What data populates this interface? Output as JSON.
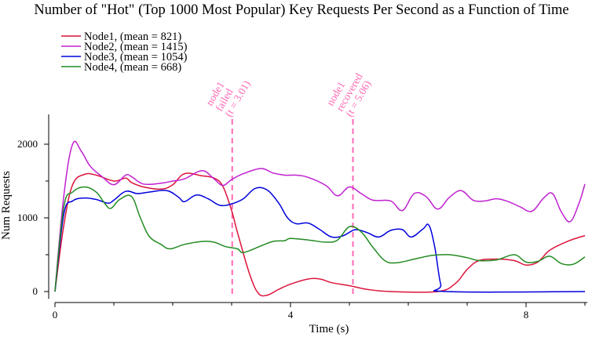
{
  "chart_data": {
    "type": "line",
    "title": "Number of \"Hot\" (Top 1000 Most Popular) Key Requests Per Second as a Function of Time",
    "xlabel": "Time (s)",
    "ylabel": "Num Requests",
    "xlim": [
      0,
      9.0
    ],
    "ylim": [
      -100,
      2400
    ],
    "x_ticks": [
      0,
      4,
      8
    ],
    "y_ticks": [
      0,
      1000,
      2000
    ],
    "x_minor_ticks": [
      0,
      1,
      2,
      3,
      4,
      5,
      6,
      7,
      8,
      9
    ],
    "y_minor_ticks": [
      0,
      500,
      1000,
      1500,
      2000
    ],
    "grid": false,
    "legend_position": "top-left",
    "series": [
      {
        "name": "Node1, (mean = 821)",
        "color": "#dc143c",
        "points": [
          [
            0,
            0
          ],
          [
            0.15,
            900
          ],
          [
            0.3,
            1450
          ],
          [
            0.5,
            1590
          ],
          [
            0.7,
            1580
          ],
          [
            1.0,
            1500
          ],
          [
            1.2,
            1540
          ],
          [
            1.3,
            1480
          ],
          [
            1.5,
            1420
          ],
          [
            1.8,
            1390
          ],
          [
            2.0,
            1450
          ],
          [
            2.2,
            1600
          ],
          [
            2.5,
            1570
          ],
          [
            2.7,
            1540
          ],
          [
            2.85,
            1430
          ],
          [
            3.0,
            1100
          ],
          [
            3.1,
            800
          ],
          [
            3.3,
            250
          ],
          [
            3.45,
            -20
          ],
          [
            3.6,
            -50
          ],
          [
            3.8,
            30
          ],
          [
            4.0,
            100
          ],
          [
            4.3,
            170
          ],
          [
            4.5,
            170
          ],
          [
            4.7,
            120
          ],
          [
            5.0,
            80
          ],
          [
            5.3,
            30
          ],
          [
            5.7,
            0
          ],
          [
            6.5,
            0
          ],
          [
            6.8,
            110
          ],
          [
            7.0,
            300
          ],
          [
            7.2,
            420
          ],
          [
            7.5,
            440
          ],
          [
            7.8,
            420
          ],
          [
            8.0,
            360
          ],
          [
            8.2,
            400
          ],
          [
            8.4,
            560
          ],
          [
            8.7,
            680
          ],
          [
            9.0,
            760
          ]
        ]
      },
      {
        "name": "Node2, (mean = 1415)",
        "color": "#c020d0",
        "points": [
          [
            0,
            0
          ],
          [
            0.15,
            1300
          ],
          [
            0.3,
            2000
          ],
          [
            0.45,
            1900
          ],
          [
            0.6,
            1700
          ],
          [
            0.8,
            1560
          ],
          [
            1.0,
            1450
          ],
          [
            1.2,
            1580
          ],
          [
            1.3,
            1560
          ],
          [
            1.5,
            1460
          ],
          [
            1.8,
            1470
          ],
          [
            2.0,
            1500
          ],
          [
            2.2,
            1530
          ],
          [
            2.5,
            1640
          ],
          [
            2.7,
            1530
          ],
          [
            2.85,
            1440
          ],
          [
            3.0,
            1520
          ],
          [
            3.2,
            1600
          ],
          [
            3.5,
            1670
          ],
          [
            3.7,
            1610
          ],
          [
            3.9,
            1580
          ],
          [
            4.1,
            1580
          ],
          [
            4.3,
            1550
          ],
          [
            4.6,
            1440
          ],
          [
            4.8,
            1300
          ],
          [
            5.0,
            1420
          ],
          [
            5.2,
            1330
          ],
          [
            5.4,
            1240
          ],
          [
            5.7,
            1230
          ],
          [
            5.9,
            1100
          ],
          [
            6.1,
            1330
          ],
          [
            6.3,
            1290
          ],
          [
            6.5,
            1120
          ],
          [
            6.7,
            1280
          ],
          [
            6.9,
            1370
          ],
          [
            7.1,
            1240
          ],
          [
            7.3,
            1230
          ],
          [
            7.5,
            1260
          ],
          [
            7.7,
            1220
          ],
          [
            7.9,
            1150
          ],
          [
            8.1,
            1090
          ],
          [
            8.3,
            1270
          ],
          [
            8.45,
            1330
          ],
          [
            8.6,
            1080
          ],
          [
            8.75,
            950
          ],
          [
            8.9,
            1200
          ],
          [
            9.0,
            1460
          ]
        ]
      },
      {
        "name": "Node3, (mean = 1054)",
        "color": "#0000dd",
        "points": [
          [
            0,
            0
          ],
          [
            0.15,
            1050
          ],
          [
            0.3,
            1230
          ],
          [
            0.5,
            1270
          ],
          [
            0.7,
            1250
          ],
          [
            0.9,
            1200
          ],
          [
            1.0,
            1240
          ],
          [
            1.2,
            1360
          ],
          [
            1.4,
            1330
          ],
          [
            1.6,
            1350
          ],
          [
            1.9,
            1370
          ],
          [
            2.1,
            1280
          ],
          [
            2.2,
            1220
          ],
          [
            2.4,
            1310
          ],
          [
            2.6,
            1260
          ],
          [
            2.8,
            1170
          ],
          [
            3.0,
            1190
          ],
          [
            3.2,
            1260
          ],
          [
            3.4,
            1400
          ],
          [
            3.6,
            1380
          ],
          [
            3.8,
            1200
          ],
          [
            3.95,
            1000
          ],
          [
            4.1,
            920
          ],
          [
            4.3,
            930
          ],
          [
            4.5,
            840
          ],
          [
            4.7,
            740
          ],
          [
            4.9,
            760
          ],
          [
            5.1,
            840
          ],
          [
            5.3,
            800
          ],
          [
            5.5,
            740
          ],
          [
            5.7,
            830
          ],
          [
            5.9,
            840
          ],
          [
            6.05,
            740
          ],
          [
            6.25,
            850
          ],
          [
            6.35,
            900
          ],
          [
            6.45,
            600
          ],
          [
            6.55,
            100
          ],
          [
            6.65,
            0
          ],
          [
            9.0,
            0
          ]
        ]
      },
      {
        "name": "Node4, (mean = 668)",
        "color": "#228b22",
        "points": [
          [
            0,
            0
          ],
          [
            0.15,
            1150
          ],
          [
            0.3,
            1350
          ],
          [
            0.5,
            1420
          ],
          [
            0.7,
            1350
          ],
          [
            0.85,
            1190
          ],
          [
            0.95,
            1130
          ],
          [
            1.1,
            1250
          ],
          [
            1.3,
            1290
          ],
          [
            1.45,
            1000
          ],
          [
            1.6,
            750
          ],
          [
            1.8,
            640
          ],
          [
            1.95,
            580
          ],
          [
            2.2,
            640
          ],
          [
            2.5,
            680
          ],
          [
            2.7,
            670
          ],
          [
            2.9,
            610
          ],
          [
            3.1,
            580
          ],
          [
            3.2,
            530
          ],
          [
            3.5,
            620
          ],
          [
            3.7,
            680
          ],
          [
            3.9,
            690
          ],
          [
            4.0,
            720
          ],
          [
            4.3,
            700
          ],
          [
            4.6,
            670
          ],
          [
            4.8,
            700
          ],
          [
            5.0,
            880
          ],
          [
            5.2,
            810
          ],
          [
            5.4,
            600
          ],
          [
            5.6,
            420
          ],
          [
            5.8,
            390
          ],
          [
            6.1,
            440
          ],
          [
            6.4,
            490
          ],
          [
            6.7,
            500
          ],
          [
            7.0,
            460
          ],
          [
            7.2,
            420
          ],
          [
            7.5,
            430
          ],
          [
            7.8,
            500
          ],
          [
            8.0,
            400
          ],
          [
            8.2,
            410
          ],
          [
            8.4,
            480
          ],
          [
            8.6,
            380
          ],
          [
            8.8,
            370
          ],
          [
            9.0,
            470
          ]
        ]
      }
    ],
    "annotations": [
      {
        "x": 3.01,
        "lines": [
          "node1",
          "failed",
          "(t = 3.01)"
        ],
        "color": "#ff69b4"
      },
      {
        "x": 5.06,
        "lines": [
          "node1",
          "recovered",
          "(t = 5.06)"
        ],
        "color": "#ff69b4"
      }
    ],
    "tick_labels": {
      "x": [
        "0",
        "4",
        "8"
      ],
      "y": [
        "0",
        "1000",
        "2000"
      ]
    }
  }
}
